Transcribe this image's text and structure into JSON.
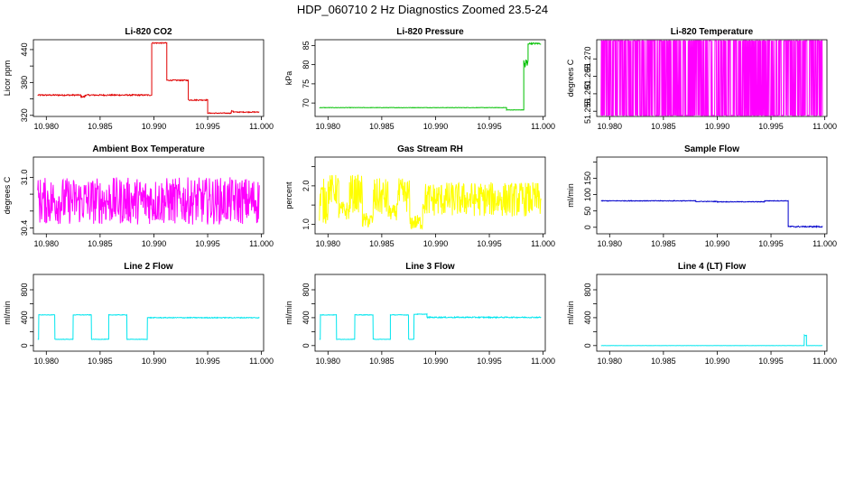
{
  "figure": {
    "title": "HDP_060710  2 Hz Diagnostics Zoomed 23.5-24"
  },
  "panels": [
    {
      "title": "Li-820 CO2",
      "ylabel": "Licor ppm",
      "color": "#e00000",
      "chart_data": {
        "type": "line",
        "xlim": [
          10.9788,
          11.0002
        ],
        "ylim": [
          318,
          458
        ],
        "xticks": [
          10.98,
          10.985,
          10.99,
          10.995,
          11.0
        ],
        "xtick_labels": [
          "10.980",
          "10.985",
          "10.990",
          "10.995",
          "11.000"
        ],
        "yticks": [
          320,
          350,
          380,
          410,
          440
        ],
        "ytick_labels": [
          "320",
          "",
          "380",
          "",
          "440"
        ],
        "segments": [
          {
            "x0": 10.9792,
            "x1": 10.9832,
            "level": 357,
            "noise": 1.2
          },
          {
            "x0": 10.9832,
            "x1": 10.9836,
            "level": 354,
            "noise": 1.2
          },
          {
            "x0": 10.9836,
            "x1": 10.9898,
            "level": 357,
            "noise": 1.2
          },
          {
            "x0": 10.9898,
            "x1": 10.9912,
            "level": 452,
            "noise": 1.0
          },
          {
            "x0": 10.9912,
            "x1": 10.9932,
            "level": 384,
            "noise": 1.0
          },
          {
            "x0": 10.9932,
            "x1": 10.995,
            "level": 348,
            "noise": 1.0
          },
          {
            "x0": 10.995,
            "x1": 10.9972,
            "level": 324,
            "noise": 0.8
          },
          {
            "x0": 10.9972,
            "x1": 10.9974,
            "level": 328,
            "noise": 0.8
          },
          {
            "x0": 10.9974,
            "x1": 10.9998,
            "level": 326,
            "noise": 0.8
          }
        ]
      }
    },
    {
      "title": "Li-820 Pressure",
      "ylabel": "kPa",
      "color": "#00c000",
      "chart_data": {
        "type": "line",
        "xlim": [
          10.9788,
          11.0002
        ],
        "ylim": [
          66.5,
          86.5
        ],
        "xticks": [
          10.98,
          10.985,
          10.99,
          10.995,
          11.0
        ],
        "xtick_labels": [
          "10.980",
          "10.985",
          "10.990",
          "10.995",
          "11.000"
        ],
        "yticks": [
          70,
          75,
          80,
          85
        ],
        "ytick_labels": [
          "70",
          "75",
          "80",
          "85"
        ],
        "segments": [
          {
            "x0": 10.9792,
            "x1": 10.9966,
            "level": 68.8,
            "noise": 0.05
          },
          {
            "x0": 10.9966,
            "x1": 10.9982,
            "level": 68.2,
            "noise": 0.05
          },
          {
            "x0": 10.9982,
            "x1": 10.9986,
            "level": 80.0,
            "noise": 2.0
          },
          {
            "x0": 10.9986,
            "x1": 10.9998,
            "level": 85.5,
            "noise": 0.2
          }
        ]
      }
    },
    {
      "title": "Li-820 Temperature",
      "ylabel": "degrees C",
      "color": "#ff00ff",
      "chart_data": {
        "type": "line",
        "xlim": [
          10.9788,
          11.0002
        ],
        "ylim": [
          51.2535,
          51.2755
        ],
        "xticks": [
          10.98,
          10.985,
          10.99,
          10.995,
          11.0
        ],
        "xtick_labels": [
          "10.980",
          "10.985",
          "10.990",
          "10.995",
          "11.000"
        ],
        "yticks": [
          51.255,
          51.26,
          51.265,
          51.27
        ],
        "ytick_labels": [
          "51.255",
          "51.260",
          "51.265",
          "51.270"
        ],
        "toggle_levels": [
          51.2538,
          51.2752
        ]
      }
    },
    {
      "title": "Ambient Box Temperature",
      "ylabel": "degrees C",
      "color": "#ff00ff",
      "chart_data": {
        "type": "line",
        "xlim": [
          10.9788,
          11.0002
        ],
        "ylim": [
          30.33,
          31.24
        ],
        "xticks": [
          10.98,
          10.985,
          10.99,
          10.995,
          11.0
        ],
        "xtick_labels": [
          "10.980",
          "10.985",
          "10.990",
          "10.995",
          "11.000"
        ],
        "yticks": [
          30.4,
          30.6,
          30.8,
          31.0
        ],
        "ytick_labels": [
          "30.4",
          "",
          "",
          "31.0"
        ],
        "segments": [
          {
            "x0": 10.9792,
            "x1": 10.9998,
            "level": 30.72,
            "noise": 0.28
          }
        ]
      }
    },
    {
      "title": "Gas Stream RH",
      "ylabel": "percent",
      "color": "#ffff00",
      "chart_data": {
        "type": "line",
        "xlim": [
          10.9788,
          11.0002
        ],
        "ylim": [
          0.75,
          2.75
        ],
        "xticks": [
          10.98,
          10.985,
          10.99,
          10.995,
          11.0
        ],
        "xtick_labels": [
          "10.980",
          "10.985",
          "10.990",
          "10.995",
          "11.000"
        ],
        "yticks": [
          1.0,
          1.5,
          2.0,
          2.5
        ],
        "ytick_labels": [
          "1.0",
          "",
          "2.0",
          ""
        ],
        "segments": [
          {
            "x0": 10.9792,
            "x1": 10.98,
            "level": 1.6,
            "noise": 0.6
          },
          {
            "x0": 10.98,
            "x1": 10.981,
            "level": 1.9,
            "noise": 0.4
          },
          {
            "x0": 10.981,
            "x1": 10.982,
            "level": 1.35,
            "noise": 0.25
          },
          {
            "x0": 10.982,
            "x1": 10.9832,
            "level": 1.8,
            "noise": 0.5
          },
          {
            "x0": 10.9832,
            "x1": 10.9842,
            "level": 1.1,
            "noise": 0.2
          },
          {
            "x0": 10.9842,
            "x1": 10.9856,
            "level": 1.7,
            "noise": 0.5
          },
          {
            "x0": 10.9856,
            "x1": 10.9864,
            "level": 1.3,
            "noise": 0.2
          },
          {
            "x0": 10.9864,
            "x1": 10.9876,
            "level": 1.75,
            "noise": 0.45
          },
          {
            "x0": 10.9876,
            "x1": 10.9888,
            "level": 1.05,
            "noise": 0.2
          },
          {
            "x0": 10.9888,
            "x1": 10.9998,
            "level": 1.65,
            "noise": 0.45
          }
        ]
      }
    },
    {
      "title": "Sample Flow",
      "ylabel": "ml/min",
      "color": "#0000cc",
      "chart_data": {
        "type": "line",
        "xlim": [
          10.9788,
          11.0002
        ],
        "ylim": [
          -20,
          215
        ],
        "xticks": [
          10.98,
          10.985,
          10.99,
          10.995,
          11.0
        ],
        "xtick_labels": [
          "10.980",
          "10.985",
          "10.990",
          "10.995",
          "11.000"
        ],
        "yticks": [
          0,
          50,
          100,
          150,
          200
        ],
        "ytick_labels": [
          "0",
          "50",
          "100",
          "150",
          ""
        ],
        "segments": [
          {
            "x0": 10.9792,
            "x1": 10.988,
            "level": 81,
            "noise": 1.0
          },
          {
            "x0": 10.988,
            "x1": 10.99,
            "level": 79,
            "noise": 1.0
          },
          {
            "x0": 10.99,
            "x1": 10.9944,
            "level": 78,
            "noise": 1.0
          },
          {
            "x0": 10.9944,
            "x1": 10.9966,
            "level": 81,
            "noise": 1.0
          },
          {
            "x0": 10.9966,
            "x1": 10.9998,
            "level": 2,
            "noise": 2.0
          }
        ]
      }
    },
    {
      "title": "Line 2 Flow",
      "ylabel": "ml/min",
      "color": "#00e5ee",
      "chart_data": {
        "type": "line",
        "xlim": [
          10.9788,
          11.0002
        ],
        "ylim": [
          -80,
          1020
        ],
        "xticks": [
          10.98,
          10.985,
          10.99,
          10.995,
          11.0
        ],
        "xtick_labels": [
          "10.980",
          "10.985",
          "10.990",
          "10.995",
          "11.000"
        ],
        "yticks": [
          0,
          200,
          400,
          600,
          800
        ],
        "ytick_labels": [
          "0",
          "",
          "400",
          "",
          "800"
        ],
        "segments": [
          {
            "x0": 10.9792,
            "x1": 10.9793,
            "level": 90,
            "noise": 0
          },
          {
            "x0": 10.9793,
            "x1": 10.9808,
            "level": 440,
            "noise": 4
          },
          {
            "x0": 10.9808,
            "x1": 10.9825,
            "level": 90,
            "noise": 3
          },
          {
            "x0": 10.9825,
            "x1": 10.9842,
            "level": 440,
            "noise": 4
          },
          {
            "x0": 10.9842,
            "x1": 10.9858,
            "level": 90,
            "noise": 3
          },
          {
            "x0": 10.9858,
            "x1": 10.9875,
            "level": 440,
            "noise": 4
          },
          {
            "x0": 10.9875,
            "x1": 10.9894,
            "level": 90,
            "noise": 3
          },
          {
            "x0": 10.9894,
            "x1": 10.9998,
            "level": 400,
            "noise": 6
          }
        ]
      }
    },
    {
      "title": "Line 3 Flow",
      "ylabel": "ml/min",
      "color": "#00e5ee",
      "chart_data": {
        "type": "line",
        "xlim": [
          10.9788,
          11.0002
        ],
        "ylim": [
          -80,
          1020
        ],
        "xticks": [
          10.98,
          10.985,
          10.99,
          10.995,
          11.0
        ],
        "xtick_labels": [
          "10.980",
          "10.985",
          "10.990",
          "10.995",
          "11.000"
        ],
        "yticks": [
          0,
          200,
          400,
          600,
          800
        ],
        "ytick_labels": [
          "0",
          "",
          "400",
          "",
          "800"
        ],
        "segments": [
          {
            "x0": 10.9792,
            "x1": 10.9793,
            "level": 90,
            "noise": 0
          },
          {
            "x0": 10.9793,
            "x1": 10.9808,
            "level": 440,
            "noise": 4
          },
          {
            "x0": 10.9808,
            "x1": 10.9825,
            "level": 90,
            "noise": 3
          },
          {
            "x0": 10.9825,
            "x1": 10.9842,
            "level": 440,
            "noise": 4
          },
          {
            "x0": 10.9842,
            "x1": 10.9858,
            "level": 90,
            "noise": 3
          },
          {
            "x0": 10.9858,
            "x1": 10.9875,
            "level": 440,
            "noise": 4
          },
          {
            "x0": 10.9875,
            "x1": 10.988,
            "level": 90,
            "noise": 3
          },
          {
            "x0": 10.988,
            "x1": 10.9892,
            "level": 450,
            "noise": 4
          },
          {
            "x0": 10.9892,
            "x1": 10.9998,
            "level": 405,
            "noise": 8
          }
        ]
      }
    },
    {
      "title": "Line 4 (LT) Flow",
      "ylabel": "ml/min",
      "color": "#00e5ee",
      "chart_data": {
        "type": "line",
        "xlim": [
          10.9788,
          11.0002
        ],
        "ylim": [
          -80,
          1020
        ],
        "xticks": [
          10.98,
          10.985,
          10.99,
          10.995,
          11.0
        ],
        "xtick_labels": [
          "10.980",
          "10.985",
          "10.990",
          "10.995",
          "11.000"
        ],
        "yticks": [
          0,
          200,
          400,
          600,
          800
        ],
        "ytick_labels": [
          "0",
          "",
          "400",
          "",
          "800"
        ],
        "segments": [
          {
            "x0": 10.9792,
            "x1": 10.9981,
            "level": 0,
            "noise": 1
          },
          {
            "x0": 10.9981,
            "x1": 10.9983,
            "level": 150,
            "noise": 10
          },
          {
            "x0": 10.9983,
            "x1": 10.9998,
            "level": 0,
            "noise": 1
          }
        ]
      }
    }
  ]
}
